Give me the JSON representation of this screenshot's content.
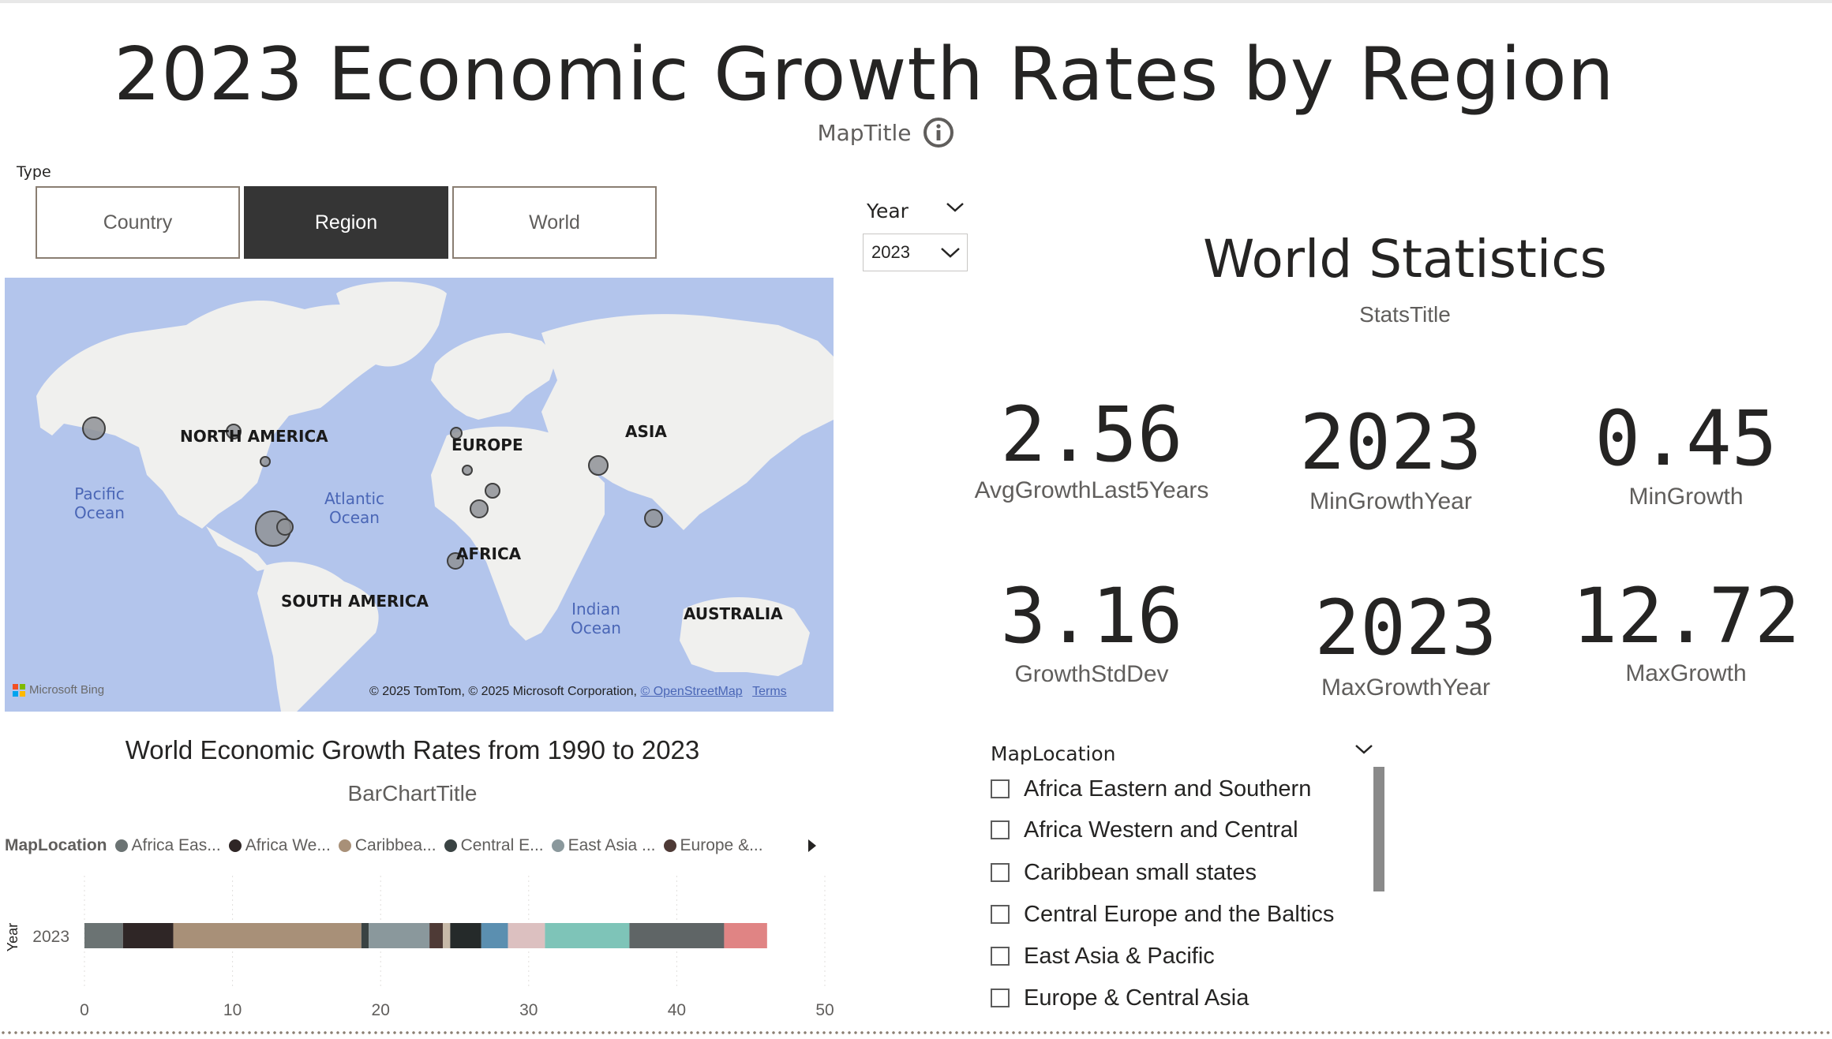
{
  "header": {
    "title": "2023 Economic Growth Rates by Region",
    "map_subtitle": "MapTitle"
  },
  "type_slicer": {
    "label": "Type",
    "options": [
      {
        "label": "Country",
        "active": false
      },
      {
        "label": "Region",
        "active": true
      },
      {
        "label": "World",
        "active": false
      }
    ]
  },
  "year_slicer": {
    "label": "Year",
    "value": "2023"
  },
  "map": {
    "labels": {
      "north_america": "NORTH AMERICA",
      "europe": "EUROPE",
      "asia": "ASIA",
      "africa": "AFRICA",
      "south_america": "SOUTH AMERICA",
      "australia": "AUSTRALIA",
      "pacific_1": "Pacific",
      "pacific_2": "Ocean",
      "atlantic_1": "Atlantic",
      "atlantic_2": "Ocean",
      "indian_1": "Indian",
      "indian_2": "Ocean"
    },
    "brand": "Microsoft Bing",
    "attribution": "© 2025 TomTom, © 2025 Microsoft Corporation,",
    "osm_link": "© OpenStreetMap",
    "terms_link": "Terms"
  },
  "stats": {
    "title": "World Statistics",
    "subtitle": "StatsTitle",
    "avg_growth_5y": {
      "value": "2.56",
      "label": "AvgGrowthLast5Years"
    },
    "min_growth_year": {
      "value": "2023",
      "label": "MinGrowthYear"
    },
    "min_growth": {
      "value": "0.45",
      "label": "MinGrowth"
    },
    "growth_std_dev": {
      "value": "3.16",
      "label": "GrowthStdDev"
    },
    "max_growth_year": {
      "value": "2023",
      "label": "MaxGrowthYear"
    },
    "max_growth": {
      "value": "12.72",
      "label": "MaxGrowth"
    }
  },
  "map_location_slicer": {
    "label": "MapLocation",
    "items": [
      "Africa Eastern and Southern",
      "Africa Western and Central",
      "Caribbean small states",
      "Central Europe and the Baltics",
      "East Asia & Pacific",
      "Europe & Central Asia"
    ]
  },
  "bar_chart": {
    "title": "World Economic Growth Rates from 1990 to 2023",
    "subtitle": "BarChartTitle",
    "legend_title": "MapLocation",
    "legend": [
      {
        "label": "Africa Eas...",
        "color": "#6b7373"
      },
      {
        "label": "Africa We...",
        "color": "#2f2626"
      },
      {
        "label": "Caribbea...",
        "color": "#a89078"
      },
      {
        "label": "Central E...",
        "color": "#3a4343"
      },
      {
        "label": "East Asia ...",
        "color": "#8a989c"
      },
      {
        "label": "Europe &...",
        "color": "#4e3a36"
      }
    ]
  },
  "chart_data": {
    "type": "bar",
    "orientation": "horizontal",
    "stacked": true,
    "categories": [
      "2023"
    ],
    "ylabel": "Year",
    "xlim": [
      0,
      50
    ],
    "x_ticks": [
      0,
      10,
      20,
      30,
      40,
      50
    ],
    "series": [
      {
        "name": "Africa Eas...",
        "values": [
          2.6
        ],
        "color": "#6b7373"
      },
      {
        "name": "Africa We...",
        "values": [
          3.4
        ],
        "color": "#2f2626"
      },
      {
        "name": "Caribbea...",
        "values": [
          12.7
        ],
        "color": "#a89078"
      },
      {
        "values": [
          0.5
        ],
        "color": "#3a4343"
      },
      {
        "name": "East Asia ...",
        "values": [
          4.1
        ],
        "color": "#8a989c"
      },
      {
        "values": [
          0.9
        ],
        "color": "#4e3a36"
      },
      {
        "values": [
          0.5
        ],
        "color": "#c7b9a8"
      },
      {
        "values": [
          2.1
        ],
        "color": "#252a2a"
      },
      {
        "values": [
          1.8
        ],
        "color": "#5b8fb0"
      },
      {
        "values": [
          2.5
        ],
        "color": "#dcc0c0"
      },
      {
        "values": [
          5.7
        ],
        "color": "#7ec4b8"
      },
      {
        "values": [
          6.4
        ],
        "color": "#5f6566"
      },
      {
        "values": [
          2.9
        ],
        "color": "#e08484"
      }
    ]
  },
  "colors": {
    "accent_dark": "#353535",
    "map_water": "#b3c5ec",
    "map_land": "#f0f0ee",
    "text": "#252423",
    "muted": "#605e5c"
  }
}
